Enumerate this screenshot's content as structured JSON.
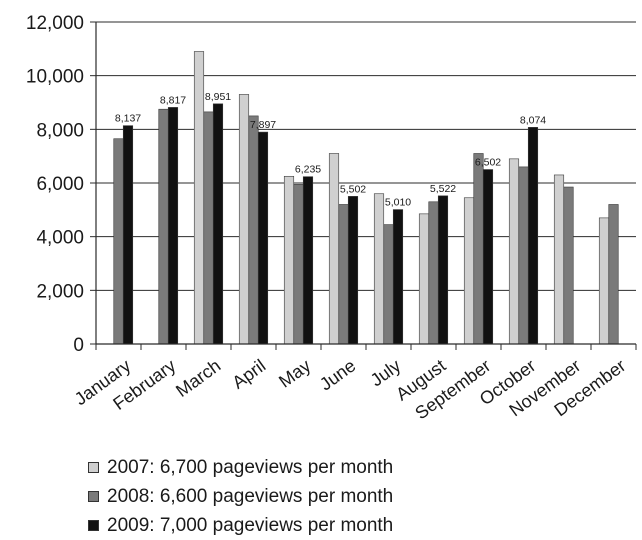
{
  "chart_data": {
    "type": "bar",
    "categories": [
      "January",
      "February",
      "March",
      "April",
      "May",
      "June",
      "July",
      "August",
      "September",
      "October",
      "November",
      "December"
    ],
    "series": [
      {
        "name": "2007: 6,700 pageviews per month",
        "color": "#d0d0d0",
        "values": [
          null,
          null,
          10900,
          9300,
          6250,
          7100,
          5600,
          4850,
          5450,
          6900,
          6300,
          4700
        ]
      },
      {
        "name": "2008: 6,600 pageviews per month",
        "color": "#7a7a7a",
        "values": [
          7650,
          8750,
          8650,
          8500,
          5950,
          5200,
          4450,
          5300,
          7100,
          6600,
          5850,
          5200
        ]
      },
      {
        "name": "2009: 7,000 pageviews per month",
        "color": "#111111",
        "values": [
          8137,
          8817,
          8951,
          7897,
          6235,
          5502,
          5010,
          5522,
          6502,
          8074,
          null,
          null
        ]
      }
    ],
    "data_labels": {
      "series_index": 2,
      "labels": [
        "8,137",
        "8,817",
        "8,951",
        "7,897",
        "6,235",
        "5,502",
        "5,010",
        "5,522",
        "6,502",
        "8,074",
        "",
        ""
      ]
    },
    "y_ticks": [
      0,
      2000,
      4000,
      6000,
      8000,
      10000,
      12000
    ],
    "y_tick_labels": [
      "0",
      "2,000",
      "4,000",
      "6,000",
      "8,000",
      "10,000",
      "12,000"
    ],
    "ylim": [
      0,
      12000
    ],
    "grid": true,
    "legend_position": "bottom-left"
  }
}
